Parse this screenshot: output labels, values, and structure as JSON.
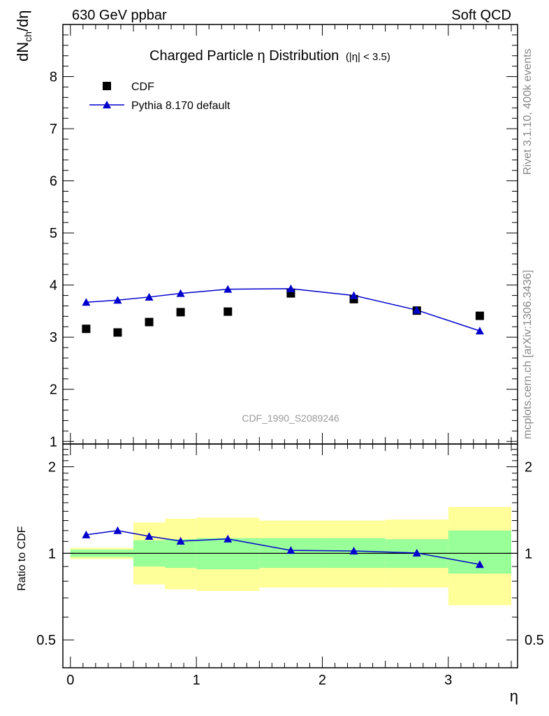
{
  "header": {
    "left": "630 GeV ppbar",
    "right": "Soft QCD"
  },
  "side_notes": {
    "rivet": "Rivet 3.1.10,  400k events",
    "site": "mcplots.cern.ch [arXiv:1306.3436]"
  },
  "watermark": "CDF_1990_S2089246",
  "colors": {
    "mc": "#0000cc",
    "data": "#000000",
    "band_inner": "#99ff99",
    "band_outer": "#ffff99"
  },
  "chart_data": [
    {
      "type": "scatter",
      "title": "Charged Particle η Distribution",
      "title_note": "(|η| < 3.5)",
      "ylabel": "dN_ch/dη",
      "xlim": [
        -0.06,
        3.55
      ],
      "ylim": [
        0.95,
        9.0
      ],
      "yticks": [
        1,
        2,
        3,
        4,
        5,
        6,
        7,
        8
      ],
      "legend_position": "top-left",
      "series": [
        {
          "name": "CDF",
          "marker": "square",
          "x": [
            0.125,
            0.375,
            0.625,
            0.875,
            1.25,
            1.75,
            2.25,
            2.75,
            3.25
          ],
          "y": [
            3.16,
            3.09,
            3.29,
            3.48,
            3.49,
            3.84,
            3.73,
            3.51,
            3.41
          ]
        },
        {
          "name": "Pythia 8.170 default",
          "marker": "triangle",
          "x": [
            0.125,
            0.375,
            0.625,
            0.875,
            1.25,
            1.75,
            2.25,
            2.75,
            3.25
          ],
          "y": [
            3.67,
            3.71,
            3.77,
            3.84,
            3.92,
            3.93,
            3.8,
            3.52,
            3.12
          ]
        }
      ]
    },
    {
      "type": "line",
      "ylabel": "Ratio to CDF",
      "xlabel": "η",
      "xlim": [
        -0.06,
        3.55
      ],
      "ylim": [
        0.4,
        2.4
      ],
      "yscale": "log",
      "yticks": [
        0.5,
        1,
        2
      ],
      "ytick_labels": [
        "0.5",
        "1",
        "2"
      ],
      "xticks": [
        0,
        1,
        2,
        3
      ],
      "reference_line": 1,
      "bands": {
        "edges": [
          0,
          0.5,
          0.75,
          1.0,
          1.5,
          2.0,
          2.5,
          3.0,
          3.5
        ],
        "inner_low": [
          0.97,
          0.9,
          0.89,
          0.88,
          0.89,
          0.89,
          0.89,
          0.85
        ],
        "inner_high": [
          1.03,
          1.11,
          1.12,
          1.13,
          1.13,
          1.13,
          1.12,
          1.2
        ],
        "outer_low": [
          0.955,
          0.78,
          0.75,
          0.74,
          0.76,
          0.76,
          0.76,
          0.66
        ],
        "outer_high": [
          1.045,
          1.28,
          1.32,
          1.33,
          1.3,
          1.3,
          1.31,
          1.45
        ]
      },
      "series": [
        {
          "name": "Pythia 8.170 default",
          "x": [
            0.125,
            0.375,
            0.625,
            0.875,
            1.25,
            1.75,
            2.25,
            2.75,
            3.25
          ],
          "y": [
            1.16,
            1.2,
            1.146,
            1.103,
            1.122,
            1.024,
            1.019,
            1.003,
            0.915
          ]
        }
      ]
    }
  ]
}
